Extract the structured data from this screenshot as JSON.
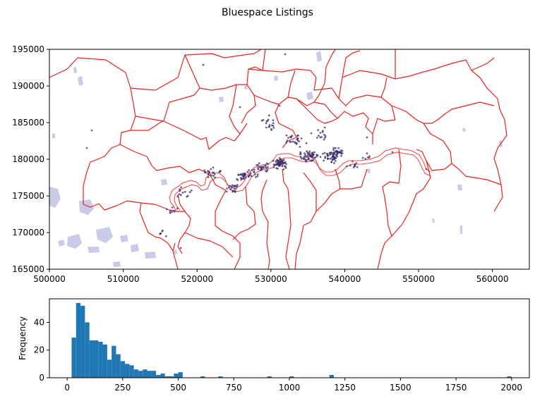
{
  "figure": {
    "title": "Bluespace Listings"
  },
  "colors": {
    "boundary": "#e8231f",
    "water": "#c9cbe8",
    "points": "#3b2d6e",
    "bars": "#1f77b4",
    "axis": "#000000"
  },
  "chart_data": [
    {
      "type": "scatter",
      "title": "",
      "xlabel": "",
      "ylabel": "",
      "xlim": [
        500000,
        565000
      ],
      "ylim": [
        165000,
        195000
      ],
      "x_ticks": [
        500000,
        510000,
        520000,
        530000,
        540000,
        550000,
        560000
      ],
      "y_ticks": [
        165000,
        170000,
        175000,
        180000,
        185000,
        190000,
        195000
      ],
      "x_tick_labels": [
        "500000",
        "510000",
        "520000",
        "530000",
        "540000",
        "550000",
        "560000"
      ],
      "y_tick_labels": [
        "165000",
        "170000",
        "175000",
        "180000",
        "185000",
        "190000",
        "195000"
      ],
      "layers": [
        "borough boundaries",
        "water bodies",
        "listing points"
      ],
      "grid": false
    },
    {
      "type": "bar",
      "title": "",
      "xlabel": "",
      "ylabel": "Frequency",
      "xlim": [
        -80,
        2080
      ],
      "ylim": [
        0,
        57
      ],
      "x_ticks": [
        0,
        250,
        500,
        750,
        1000,
        1250,
        1500,
        1750,
        2000
      ],
      "x_tick_labels": [
        "0",
        "250",
        "500",
        "750",
        "1000",
        "1250",
        "1500",
        "1750",
        "2000"
      ],
      "y_ticks": [
        0,
        20,
        40
      ],
      "y_tick_labels": [
        "0",
        "20",
        "40"
      ],
      "bin_width": 20,
      "bin_starts": [
        20,
        40,
        60,
        80,
        100,
        120,
        140,
        160,
        180,
        200,
        220,
        240,
        260,
        280,
        300,
        320,
        340,
        360,
        380,
        400,
        420,
        440,
        460,
        480,
        500,
        600,
        680,
        900,
        1000,
        1180,
        1980
      ],
      "values": [
        29,
        54,
        52,
        40,
        27,
        27,
        26,
        24,
        13,
        23,
        17,
        12,
        10,
        9,
        6,
        5,
        6,
        5,
        5,
        2,
        3,
        1,
        1,
        3,
        4,
        1,
        1,
        1,
        1,
        2,
        1
      ],
      "grid": false
    }
  ]
}
